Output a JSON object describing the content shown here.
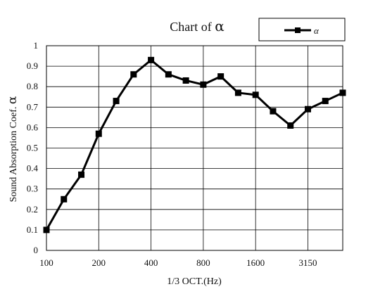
{
  "chart_data": {
    "type": "line",
    "title_text": "Chart of ",
    "title_symbol": "α",
    "xlabel": "1/3 OCT.(Hz)",
    "ylabel_text": "Sound Absorption Coef. ",
    "ylabel_symbol": "α",
    "x_tick_labels": [
      "100",
      "200",
      "400",
      "800",
      "1600",
      "3150"
    ],
    "y_tick_labels": [
      "0",
      "0.1",
      "0.2",
      "0.3",
      "0.4",
      "0.5",
      "0.6",
      "0.7",
      "0.8",
      "0.9",
      "1"
    ],
    "ylim": [
      0,
      1
    ],
    "grid": true,
    "legend_position": "top-right",
    "series": [
      {
        "name": "α",
        "color": "#000000",
        "marker": "square",
        "x": [
          "100",
          "125",
          "160",
          "200",
          "250",
          "315",
          "400",
          "500",
          "630",
          "800",
          "1000",
          "1250",
          "1600",
          "2000",
          "2500",
          "3150",
          "4000",
          "5000"
        ],
        "values": [
          0.1,
          0.25,
          0.37,
          0.57,
          0.73,
          0.86,
          0.93,
          0.86,
          0.83,
          0.81,
          0.85,
          0.77,
          0.76,
          0.68,
          0.61,
          0.69,
          0.73,
          0.77
        ]
      }
    ]
  }
}
